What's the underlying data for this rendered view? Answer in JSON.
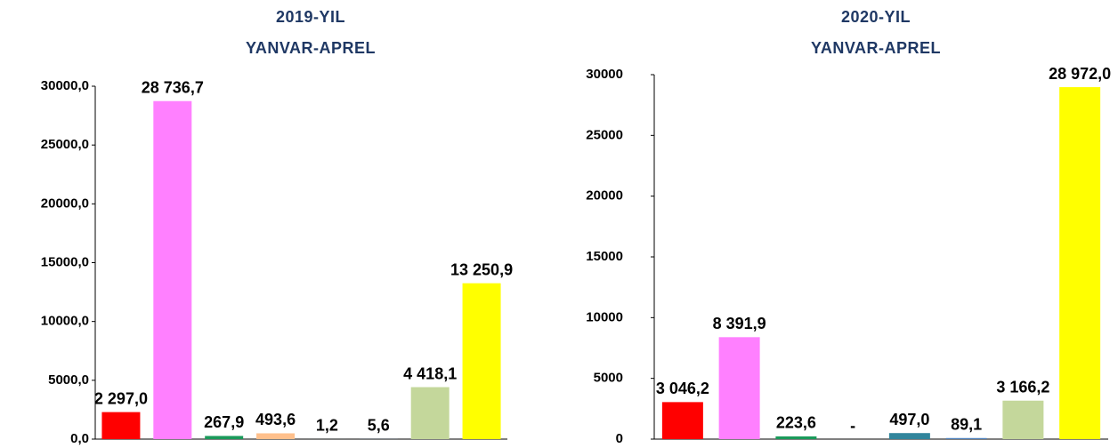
{
  "chart_data": [
    {
      "type": "bar",
      "title": "2019-YIL",
      "subtitle": "YANVAR-APREL",
      "categories": [
        null,
        null,
        null,
        null,
        null,
        null,
        null,
        null
      ],
      "values": [
        2297.0,
        28736.7,
        267.9,
        493.6,
        1.2,
        5.6,
        4418.1,
        13250.9
      ],
      "value_labels": [
        "2 297,0",
        "28 736,7",
        "267,9",
        "493,6",
        "1,2",
        "5,6",
        "4 418,1",
        "13 250,9"
      ],
      "colors": [
        "#ff0000",
        "#ff80ff",
        "#1a9a5a",
        "#ffc08c",
        "#31859c",
        "#4f81bd",
        "#c4d79b",
        "#ffff00"
      ],
      "ylim": [
        0,
        30000
      ],
      "yticks": [
        {
          "value": 0,
          "label": "0,0"
        },
        {
          "value": 5000,
          "label": "5000,0"
        },
        {
          "value": 10000,
          "label": "10000,0"
        },
        {
          "value": 15000,
          "label": "15000,0"
        },
        {
          "value": 20000,
          "label": "20000,0"
        },
        {
          "value": 25000,
          "label": "25000,0"
        },
        {
          "value": 30000,
          "label": "30000,0"
        }
      ]
    },
    {
      "type": "bar",
      "title": "2020-YIL",
      "subtitle": "YANVAR-APREL",
      "categories": [
        null,
        null,
        null,
        null,
        null,
        null,
        null,
        null
      ],
      "values": [
        3046.2,
        8391.9,
        223.6,
        null,
        497.0,
        89.1,
        3166.2,
        28972.0
      ],
      "value_labels": [
        "3 046,2",
        "8 391,9",
        "223,6",
        "-",
        "497,0",
        "89,1",
        "3 166,2",
        "28 972,0"
      ],
      "colors": [
        "#ff0000",
        "#ff80ff",
        "#1a9a5a",
        "#ffc08c",
        "#31859c",
        "#4f81bd",
        "#c4d79b",
        "#ffff00"
      ],
      "ylim": [
        0,
        30000
      ],
      "yticks": [
        0,
        5000,
        10000,
        15000,
        20000,
        25000,
        30000
      ]
    }
  ]
}
